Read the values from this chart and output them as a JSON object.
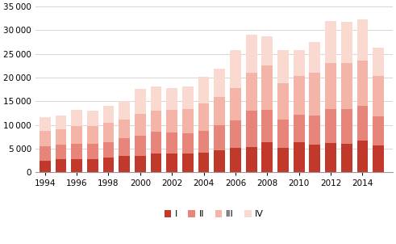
{
  "years": [
    1994,
    1995,
    1996,
    1997,
    1998,
    1999,
    2000,
    2001,
    2002,
    2003,
    2004,
    2005,
    2006,
    2007,
    2008,
    2009,
    2010,
    2011,
    2012,
    2013,
    2014,
    2015
  ],
  "Q1": [
    2400,
    2700,
    2700,
    2700,
    3100,
    3400,
    3500,
    4000,
    4000,
    3900,
    4200,
    4700,
    5100,
    5300,
    6300,
    5200,
    6300,
    5800,
    6200,
    6100,
    6700,
    5700
  ],
  "Q2": [
    3100,
    3200,
    3400,
    3300,
    3300,
    3800,
    4200,
    4500,
    4400,
    4300,
    4500,
    5200,
    5800,
    7700,
    6900,
    6000,
    5800,
    6200,
    7200,
    7200,
    7400,
    6200
  ],
  "Q3": [
    3200,
    3200,
    3700,
    3700,
    4000,
    4000,
    4700,
    4500,
    4800,
    5200,
    5800,
    6100,
    6900,
    8000,
    9300,
    7700,
    8200,
    9000,
    9600,
    9700,
    9500,
    8500
  ],
  "Q4": [
    2900,
    2900,
    3400,
    3400,
    3600,
    3800,
    5200,
    5200,
    4600,
    4800,
    5700,
    5900,
    8100,
    8000,
    6300,
    6900,
    5500,
    6500,
    8900,
    8800,
    8700,
    6000
  ],
  "colors": [
    "#c0392b",
    "#e8857a",
    "#f4b5a8",
    "#f9d9d0"
  ],
  "ylim": [
    0,
    35000
  ],
  "yticks": [
    0,
    5000,
    10000,
    15000,
    20000,
    25000,
    30000,
    35000
  ],
  "legend_labels": [
    "I",
    "II",
    "III",
    "IV"
  ],
  "background_color": "#ffffff",
  "grid_color": "#d0d0d0"
}
